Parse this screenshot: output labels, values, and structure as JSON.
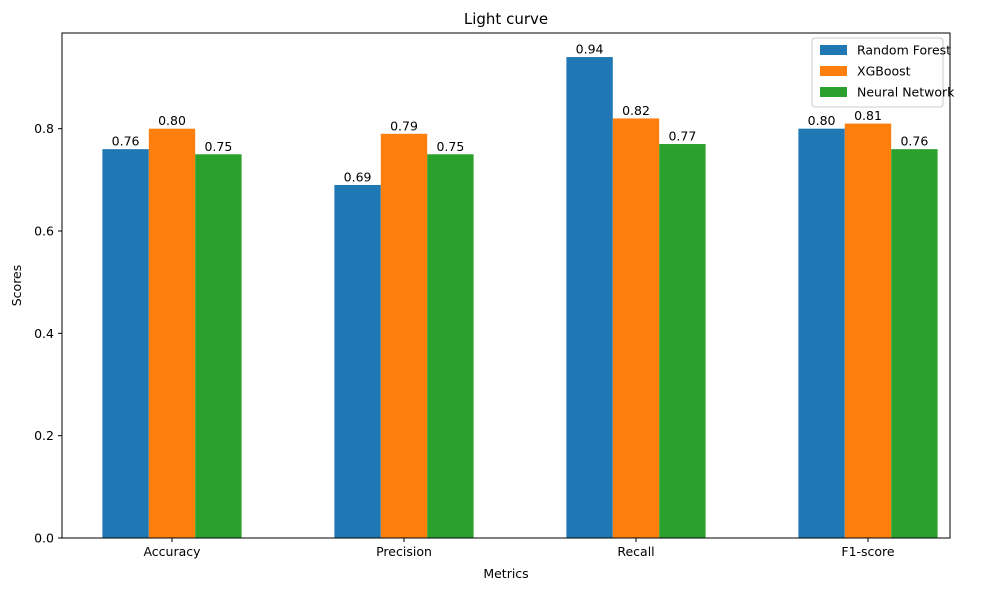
{
  "chart_data": {
    "type": "bar",
    "title": "Light curve",
    "xlabel": "Metrics",
    "ylabel": "Scores",
    "categories": [
      "Accuracy",
      "Precision",
      "Recall",
      "F1-score"
    ],
    "series": [
      {
        "name": "Random Forest",
        "color": "#1f77b4",
        "values": [
          0.76,
          0.69,
          0.94,
          0.8
        ],
        "labels": [
          "0.76",
          "0.69",
          "0.94",
          "0.80"
        ]
      },
      {
        "name": "XGBoost",
        "color": "#ff7f0e",
        "values": [
          0.8,
          0.79,
          0.82,
          0.81
        ],
        "labels": [
          "0.80",
          "0.79",
          "0.82",
          "0.81"
        ]
      },
      {
        "name": "Neural Network",
        "color": "#2ca02c",
        "values": [
          0.75,
          0.75,
          0.77,
          0.76
        ],
        "labels": [
          "0.75",
          "0.75",
          "0.77",
          "0.76"
        ]
      }
    ],
    "ylim": [
      0,
      0.987
    ],
    "yticks": [
      "0.0",
      "0.2",
      "0.4",
      "0.6",
      "0.8"
    ],
    "grid": false,
    "legend_position": "top-right"
  }
}
